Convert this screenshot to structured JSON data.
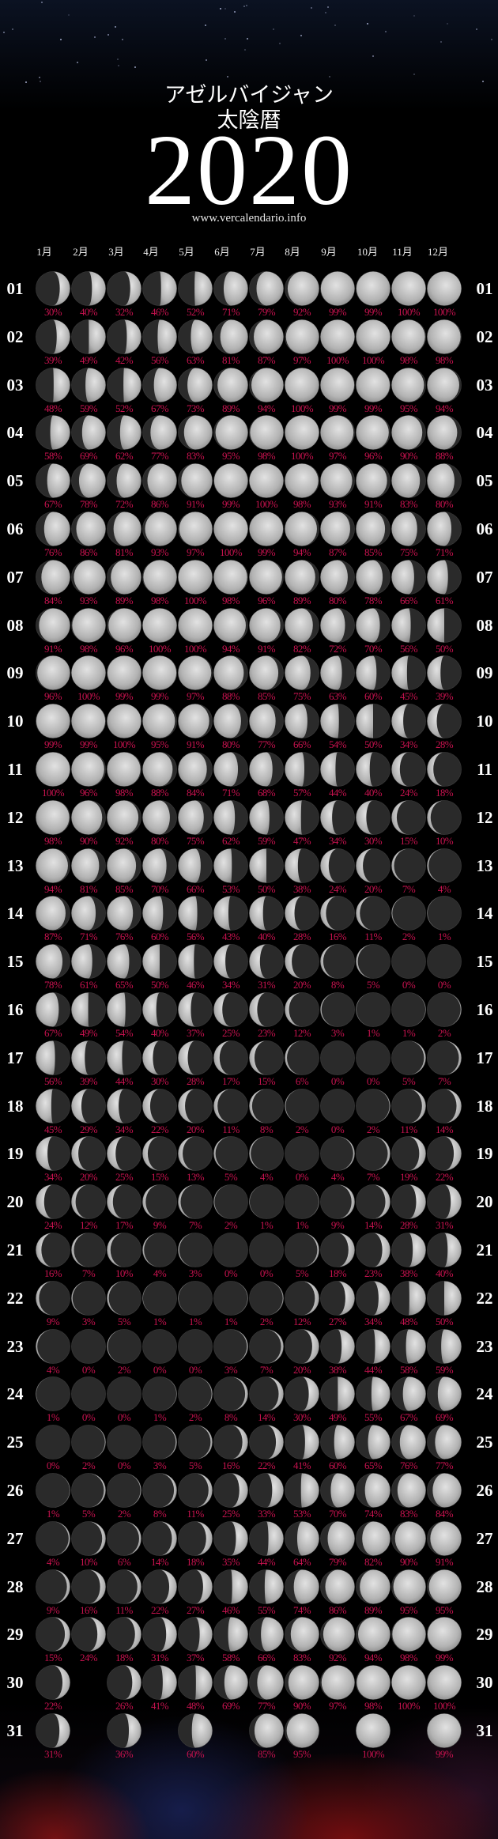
{
  "header": {
    "country": "アゼルバイジャン",
    "kind": "太陰暦",
    "year": "2020",
    "url": "www.vercalendario.info"
  },
  "months": [
    "1月",
    "2月",
    "3月",
    "4月",
    "5月",
    "6月",
    "7月",
    "8月",
    "9月",
    "10月",
    "11月",
    "12月"
  ],
  "colors": {
    "percent": "#c8124f",
    "background": "#000000",
    "text": "#ffffff"
  },
  "days": [
    {
      "label": "01",
      "values": [
        "30%",
        "40%",
        "32%",
        "46%",
        "52%",
        "71%",
        "79%",
        "92%",
        "99%",
        "99%",
        "100%",
        "100%"
      ]
    },
    {
      "label": "02",
      "values": [
        "39%",
        "49%",
        "42%",
        "56%",
        "63%",
        "81%",
        "87%",
        "97%",
        "100%",
        "100%",
        "98%",
        "98%"
      ]
    },
    {
      "label": "03",
      "values": [
        "48%",
        "59%",
        "52%",
        "67%",
        "73%",
        "89%",
        "94%",
        "100%",
        "99%",
        "99%",
        "95%",
        "94%"
      ]
    },
    {
      "label": "04",
      "values": [
        "58%",
        "69%",
        "62%",
        "77%",
        "83%",
        "95%",
        "98%",
        "100%",
        "97%",
        "96%",
        "90%",
        "88%"
      ]
    },
    {
      "label": "05",
      "values": [
        "67%",
        "78%",
        "72%",
        "86%",
        "91%",
        "99%",
        "100%",
        "98%",
        "93%",
        "91%",
        "83%",
        "80%"
      ]
    },
    {
      "label": "06",
      "values": [
        "76%",
        "86%",
        "81%",
        "93%",
        "97%",
        "100%",
        "99%",
        "94%",
        "87%",
        "85%",
        "75%",
        "71%"
      ]
    },
    {
      "label": "07",
      "values": [
        "84%",
        "93%",
        "89%",
        "98%",
        "100%",
        "98%",
        "96%",
        "89%",
        "80%",
        "78%",
        "66%",
        "61%"
      ]
    },
    {
      "label": "08",
      "values": [
        "91%",
        "98%",
        "96%",
        "100%",
        "100%",
        "94%",
        "91%",
        "82%",
        "72%",
        "70%",
        "56%",
        "50%"
      ]
    },
    {
      "label": "09",
      "values": [
        "96%",
        "100%",
        "99%",
        "99%",
        "97%",
        "88%",
        "85%",
        "75%",
        "63%",
        "60%",
        "45%",
        "39%"
      ]
    },
    {
      "label": "10",
      "values": [
        "99%",
        "99%",
        "100%",
        "95%",
        "91%",
        "80%",
        "77%",
        "66%",
        "54%",
        "50%",
        "34%",
        "28%"
      ]
    },
    {
      "label": "11",
      "values": [
        "100%",
        "96%",
        "98%",
        "88%",
        "84%",
        "71%",
        "68%",
        "57%",
        "44%",
        "40%",
        "24%",
        "18%"
      ]
    },
    {
      "label": "12",
      "values": [
        "98%",
        "90%",
        "92%",
        "80%",
        "75%",
        "62%",
        "59%",
        "47%",
        "34%",
        "30%",
        "15%",
        "10%"
      ]
    },
    {
      "label": "13",
      "values": [
        "94%",
        "81%",
        "85%",
        "70%",
        "66%",
        "53%",
        "50%",
        "38%",
        "24%",
        "20%",
        "7%",
        "4%"
      ]
    },
    {
      "label": "14",
      "values": [
        "87%",
        "71%",
        "76%",
        "60%",
        "56%",
        "43%",
        "40%",
        "28%",
        "16%",
        "11%",
        "2%",
        "1%"
      ]
    },
    {
      "label": "15",
      "values": [
        "78%",
        "61%",
        "65%",
        "50%",
        "46%",
        "34%",
        "31%",
        "20%",
        "8%",
        "5%",
        "0%",
        "0%"
      ]
    },
    {
      "label": "16",
      "values": [
        "67%",
        "49%",
        "54%",
        "40%",
        "37%",
        "25%",
        "23%",
        "12%",
        "3%",
        "1%",
        "1%",
        "2%"
      ]
    },
    {
      "label": "17",
      "values": [
        "56%",
        "39%",
        "44%",
        "30%",
        "28%",
        "17%",
        "15%",
        "6%",
        "0%",
        "0%",
        "5%",
        "7%"
      ]
    },
    {
      "label": "18",
      "values": [
        "45%",
        "29%",
        "34%",
        "22%",
        "20%",
        "11%",
        "8%",
        "2%",
        "0%",
        "2%",
        "11%",
        "14%"
      ]
    },
    {
      "label": "19",
      "values": [
        "34%",
        "20%",
        "25%",
        "15%",
        "13%",
        "5%",
        "4%",
        "0%",
        "4%",
        "7%",
        "19%",
        "22%"
      ]
    },
    {
      "label": "20",
      "values": [
        "24%",
        "12%",
        "17%",
        "9%",
        "7%",
        "2%",
        "1%",
        "1%",
        "9%",
        "14%",
        "28%",
        "31%"
      ]
    },
    {
      "label": "21",
      "values": [
        "16%",
        "7%",
        "10%",
        "4%",
        "3%",
        "0%",
        "0%",
        "5%",
        "18%",
        "23%",
        "38%",
        "40%"
      ]
    },
    {
      "label": "22",
      "values": [
        "9%",
        "3%",
        "5%",
        "1%",
        "1%",
        "1%",
        "2%",
        "12%",
        "27%",
        "34%",
        "48%",
        "50%"
      ]
    },
    {
      "label": "23",
      "values": [
        "4%",
        "0%",
        "2%",
        "0%",
        "0%",
        "3%",
        "7%",
        "20%",
        "38%",
        "44%",
        "58%",
        "59%"
      ]
    },
    {
      "label": "24",
      "values": [
        "1%",
        "0%",
        "0%",
        "1%",
        "2%",
        "8%",
        "14%",
        "30%",
        "49%",
        "55%",
        "67%",
        "69%"
      ]
    },
    {
      "label": "25",
      "values": [
        "0%",
        "2%",
        "0%",
        "3%",
        "5%",
        "16%",
        "22%",
        "41%",
        "60%",
        "65%",
        "76%",
        "77%"
      ]
    },
    {
      "label": "26",
      "values": [
        "1%",
        "5%",
        "2%",
        "8%",
        "11%",
        "25%",
        "33%",
        "53%",
        "70%",
        "74%",
        "83%",
        "84%"
      ]
    },
    {
      "label": "27",
      "values": [
        "4%",
        "10%",
        "6%",
        "14%",
        "18%",
        "35%",
        "44%",
        "64%",
        "79%",
        "82%",
        "90%",
        "91%"
      ]
    },
    {
      "label": "28",
      "values": [
        "9%",
        "16%",
        "11%",
        "22%",
        "27%",
        "46%",
        "55%",
        "74%",
        "86%",
        "89%",
        "95%",
        "95%"
      ]
    },
    {
      "label": "29",
      "values": [
        "15%",
        "24%",
        "18%",
        "31%",
        "37%",
        "58%",
        "66%",
        "83%",
        "92%",
        "94%",
        "98%",
        "99%"
      ]
    },
    {
      "label": "30",
      "values": [
        "22%",
        null,
        "26%",
        "41%",
        "48%",
        "69%",
        "77%",
        "90%",
        "97%",
        "98%",
        "100%",
        "100%"
      ]
    },
    {
      "label": "31",
      "values": [
        "31%",
        null,
        "36%",
        null,
        "60%",
        null,
        "85%",
        "95%",
        null,
        "100%",
        null,
        "99%"
      ]
    }
  ]
}
